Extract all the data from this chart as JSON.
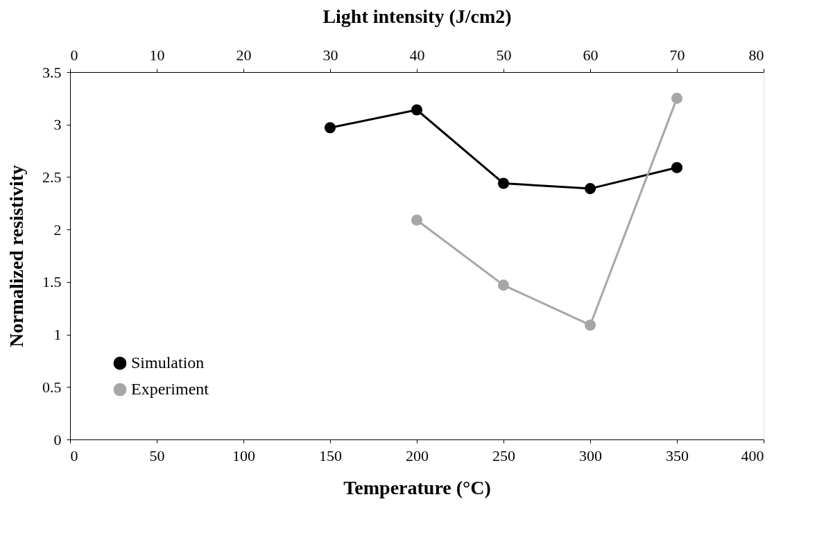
{
  "chart_data": {
    "type": "line",
    "xlabel": "Temperature (°C)",
    "ylabel": "Normalized resistivity",
    "x2label": "Light intensity (J/cm2)",
    "xlim": [
      0,
      400
    ],
    "xticks": [
      0,
      50,
      100,
      150,
      200,
      250,
      300,
      350,
      400
    ],
    "ylim": [
      0,
      3.5
    ],
    "yticks": [
      0,
      0.5,
      1,
      1.5,
      2,
      2.5,
      3,
      3.5
    ],
    "x2lim": [
      0,
      80
    ],
    "x2ticks": [
      0,
      10,
      20,
      30,
      40,
      50,
      60,
      70,
      80
    ],
    "grid": false,
    "legend": "bottom left",
    "marker": "circle",
    "line_style": "solid",
    "series": [
      {
        "name": "Simulation",
        "color": "#000000",
        "x": [
          150,
          200,
          250,
          300,
          350
        ],
        "values": [
          2.97,
          3.14,
          2.44,
          2.39,
          2.59
        ]
      },
      {
        "name": "Experiment",
        "color": "#a6a6a6",
        "x": [
          200,
          250,
          300,
          350
        ],
        "values": [
          2.09,
          1.47,
          1.09,
          3.25
        ]
      }
    ]
  }
}
